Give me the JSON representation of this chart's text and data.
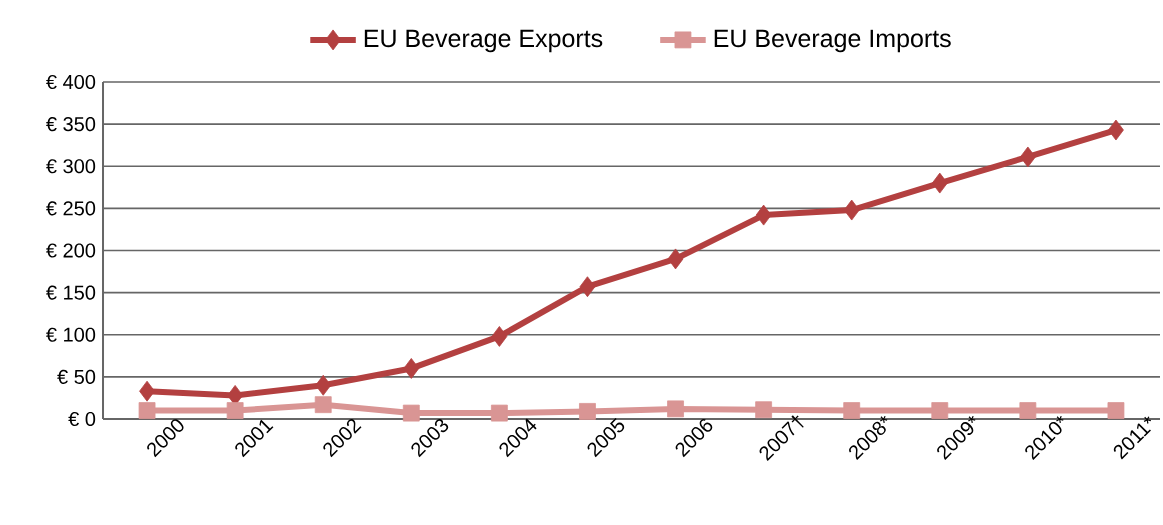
{
  "chart_data": {
    "type": "line",
    "categories": [
      "2000",
      "2001",
      "2002",
      "2003",
      "2004",
      "2005",
      "2006",
      "2007†",
      "2008*",
      "2009*",
      "2010*",
      "2011*"
    ],
    "series": [
      {
        "name": "EU Beverage Exports",
        "color": "#b34040",
        "marker": "diamond",
        "values": [
          33,
          28,
          40,
          60,
          98,
          157,
          190,
          242,
          248,
          280,
          311,
          343
        ]
      },
      {
        "name": "EU Beverage Imports",
        "color": "#d99594",
        "marker": "square",
        "values": [
          10,
          10,
          17,
          7,
          7,
          9,
          12,
          11,
          10,
          10,
          10,
          10
        ]
      }
    ],
    "ylim": [
      0,
      400
    ],
    "yticks": [
      {
        "value": 0,
        "label": "€ 0"
      },
      {
        "value": 50,
        "label": "€ 50"
      },
      {
        "value": 100,
        "label": "€ 100"
      },
      {
        "value": 150,
        "label": "€ 150"
      },
      {
        "value": 200,
        "label": "€ 200"
      },
      {
        "value": 250,
        "label": "€ 250"
      },
      {
        "value": 300,
        "label": "€ 300"
      },
      {
        "value": 350,
        "label": "€ 350"
      },
      {
        "value": 400,
        "label": "€ 400"
      }
    ],
    "grid": "y",
    "legend": "top"
  }
}
